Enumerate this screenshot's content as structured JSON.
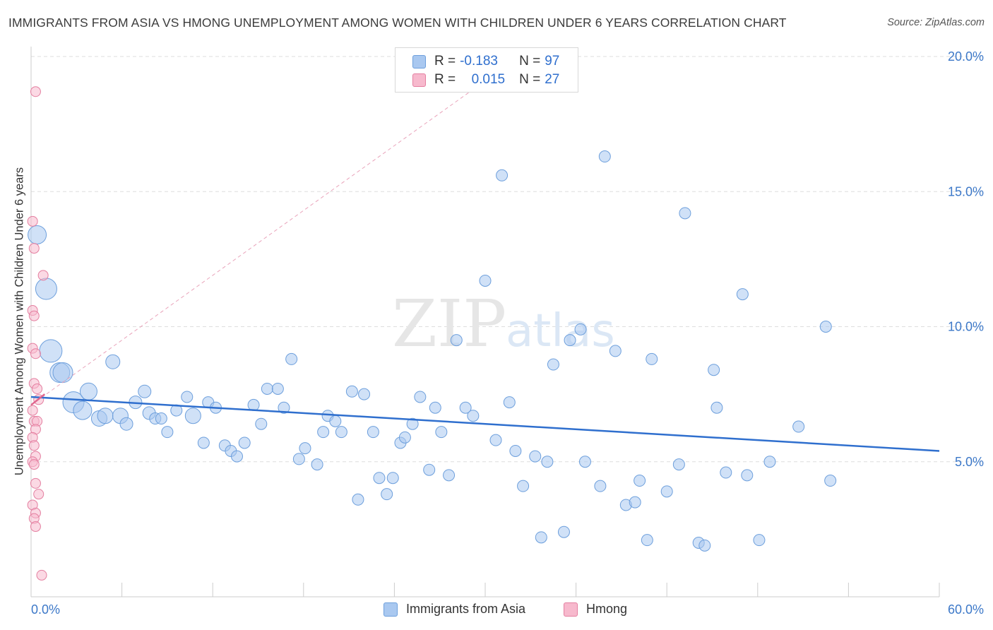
{
  "header": {
    "title": "IMMIGRANTS FROM ASIA VS HMONG UNEMPLOYMENT AMONG WOMEN WITH CHILDREN UNDER 6 YEARS CORRELATION CHART",
    "source": "Source: ZipAtlas.com"
  },
  "watermark": {
    "zip": "ZIP",
    "atlas": "atlas"
  },
  "legend": {
    "r_label": "R =",
    "n_label": "N =",
    "series1": {
      "r": "-0.183",
      "n": "97"
    },
    "series2": {
      "r": "0.015",
      "n": "27"
    }
  },
  "colors": {
    "blue_fill": "#a9c8f0",
    "blue_stroke": "#6d9fdc",
    "blue_line": "#2f6fce",
    "pink_fill": "#f7b9cd",
    "pink_stroke": "#e47fa0",
    "pink_line": "#e0668e",
    "grid": "#dedede",
    "tick_label": "#3c78c8"
  },
  "chart_data": {
    "type": "scatter",
    "title": "IMMIGRANTS FROM ASIA VS HMONG UNEMPLOYMENT AMONG WOMEN WITH CHILDREN UNDER 6 YEARS CORRELATION CHART",
    "xlabel": "",
    "ylabel": "Unemployment Among Women with Children Under 6 years",
    "xlim": [
      0,
      60
    ],
    "ylim": [
      0,
      20.5
    ],
    "x_tick_labels": [
      "0.0%",
      "60.0%"
    ],
    "y_ticks": [
      5,
      10,
      15,
      20
    ],
    "y_tick_labels": [
      "5.0%",
      "10.0%",
      "15.0%",
      "20.0%"
    ],
    "grid": true,
    "legend_position": "top-center",
    "series": [
      {
        "name": "Immigrants from Asia",
        "r": -0.183,
        "n": 97,
        "trend": {
          "x": [
            0,
            60
          ],
          "y": [
            7.4,
            5.4
          ]
        },
        "points": [
          [
            0.4,
            13.4,
            13
          ],
          [
            1.0,
            11.4,
            15
          ],
          [
            1.3,
            9.1,
            16
          ],
          [
            1.9,
            8.3,
            14
          ],
          [
            2.1,
            8.3,
            14
          ],
          [
            2.8,
            7.2,
            15
          ],
          [
            3.4,
            6.9,
            13
          ],
          [
            3.8,
            7.6,
            12
          ],
          [
            4.5,
            6.6,
            11
          ],
          [
            4.9,
            6.7,
            11
          ],
          [
            5.4,
            8.7,
            10
          ],
          [
            5.9,
            6.7,
            11
          ],
          [
            6.3,
            6.4,
            9
          ],
          [
            6.9,
            7.2,
            9
          ],
          [
            7.5,
            7.6,
            9
          ],
          [
            7.8,
            6.8,
            9
          ],
          [
            8.2,
            6.6,
            8
          ],
          [
            8.6,
            6.6,
            8
          ],
          [
            9.0,
            6.1,
            8
          ],
          [
            9.6,
            6.9,
            8
          ],
          [
            10.3,
            7.4,
            8
          ],
          [
            10.7,
            6.7,
            11
          ],
          [
            11.4,
            5.7,
            8
          ],
          [
            11.7,
            7.2,
            8
          ],
          [
            12.2,
            7.0,
            8
          ],
          [
            12.8,
            5.6,
            8
          ],
          [
            13.2,
            5.4,
            8
          ],
          [
            13.6,
            5.2,
            8
          ],
          [
            14.1,
            5.7,
            8
          ],
          [
            14.7,
            7.1,
            8
          ],
          [
            15.2,
            6.4,
            8
          ],
          [
            15.6,
            7.7,
            8
          ],
          [
            16.3,
            7.7,
            8
          ],
          [
            16.7,
            7.0,
            8
          ],
          [
            17.2,
            8.8,
            8
          ],
          [
            17.7,
            5.1,
            8
          ],
          [
            18.1,
            5.5,
            8
          ],
          [
            18.9,
            4.9,
            8
          ],
          [
            19.3,
            6.1,
            8
          ],
          [
            19.6,
            6.7,
            8
          ],
          [
            20.1,
            6.5,
            8
          ],
          [
            20.5,
            6.1,
            8
          ],
          [
            21.2,
            7.6,
            8
          ],
          [
            21.6,
            3.6,
            8
          ],
          [
            22.0,
            7.5,
            8
          ],
          [
            22.6,
            6.1,
            8
          ],
          [
            23.0,
            4.4,
            8
          ],
          [
            23.5,
            3.8,
            8
          ],
          [
            23.9,
            4.4,
            8
          ],
          [
            24.4,
            5.7,
            8
          ],
          [
            24.7,
            5.9,
            8
          ],
          [
            25.2,
            6.4,
            8
          ],
          [
            25.7,
            7.4,
            8
          ],
          [
            26.3,
            4.7,
            8
          ],
          [
            26.7,
            7.0,
            8
          ],
          [
            27.1,
            6.1,
            8
          ],
          [
            27.6,
            4.5,
            8
          ],
          [
            28.1,
            9.5,
            8
          ],
          [
            28.7,
            7.0,
            8
          ],
          [
            29.2,
            6.7,
            8
          ],
          [
            30.0,
            11.7,
            8
          ],
          [
            30.7,
            5.8,
            8
          ],
          [
            31.1,
            15.6,
            8
          ],
          [
            31.6,
            7.2,
            8
          ],
          [
            32.0,
            5.4,
            8
          ],
          [
            32.5,
            4.1,
            8
          ],
          [
            33.3,
            5.2,
            8
          ],
          [
            33.7,
            2.2,
            8
          ],
          [
            34.1,
            5.0,
            8
          ],
          [
            34.5,
            8.6,
            8
          ],
          [
            35.2,
            2.4,
            8
          ],
          [
            35.6,
            9.5,
            8
          ],
          [
            36.3,
            9.9,
            8
          ],
          [
            36.6,
            5.0,
            8
          ],
          [
            37.6,
            4.1,
            8
          ],
          [
            37.9,
            16.3,
            8
          ],
          [
            38.6,
            9.1,
            8
          ],
          [
            39.3,
            3.4,
            8
          ],
          [
            39.9,
            3.5,
            8
          ],
          [
            40.2,
            4.3,
            8
          ],
          [
            40.7,
            2.1,
            8
          ],
          [
            41.0,
            8.8,
            8
          ],
          [
            42.0,
            3.9,
            8
          ],
          [
            42.8,
            4.9,
            8
          ],
          [
            43.2,
            14.2,
            8
          ],
          [
            44.1,
            2.0,
            8
          ],
          [
            44.5,
            1.9,
            8
          ],
          [
            45.1,
            8.4,
            8
          ],
          [
            45.3,
            7.0,
            8
          ],
          [
            45.9,
            4.6,
            8
          ],
          [
            47.0,
            11.2,
            8
          ],
          [
            47.3,
            4.5,
            8
          ],
          [
            48.1,
            2.1,
            8
          ],
          [
            48.8,
            5.0,
            8
          ],
          [
            50.7,
            6.3,
            8
          ],
          [
            52.5,
            10.0,
            8
          ],
          [
            52.8,
            4.3,
            8
          ]
        ]
      },
      {
        "name": "Hmong",
        "r": 0.015,
        "n": 27,
        "trend": {
          "x": [
            0,
            0.9
          ],
          "y": [
            7.1,
            7.5
          ]
        },
        "trend_dashed": {
          "x": [
            0,
            32
          ],
          "y": [
            7.1,
            19.9
          ]
        },
        "points": [
          [
            0.3,
            18.7,
            7
          ],
          [
            0.1,
            13.9,
            7
          ],
          [
            0.2,
            12.9,
            7
          ],
          [
            0.8,
            11.9,
            7
          ],
          [
            0.1,
            10.6,
            7
          ],
          [
            0.2,
            10.4,
            7
          ],
          [
            0.1,
            9.2,
            7
          ],
          [
            0.3,
            9.0,
            7
          ],
          [
            0.2,
            7.9,
            7
          ],
          [
            0.4,
            7.7,
            7
          ],
          [
            0.5,
            7.3,
            7
          ],
          [
            0.1,
            6.9,
            7
          ],
          [
            0.2,
            6.5,
            7
          ],
          [
            0.4,
            6.5,
            7
          ],
          [
            0.3,
            6.2,
            7
          ],
          [
            0.1,
            5.9,
            7
          ],
          [
            0.2,
            5.6,
            7
          ],
          [
            0.3,
            5.2,
            7
          ],
          [
            0.1,
            5.0,
            7
          ],
          [
            0.2,
            4.9,
            7
          ],
          [
            0.3,
            4.2,
            7
          ],
          [
            0.5,
            3.8,
            7
          ],
          [
            0.1,
            3.4,
            7
          ],
          [
            0.3,
            3.1,
            7
          ],
          [
            0.2,
            2.9,
            7
          ],
          [
            0.3,
            2.6,
            7
          ],
          [
            0.7,
            0.8,
            7
          ]
        ]
      }
    ]
  },
  "bottom_legend": {
    "item1": "Immigrants from Asia",
    "item2": "Hmong"
  }
}
